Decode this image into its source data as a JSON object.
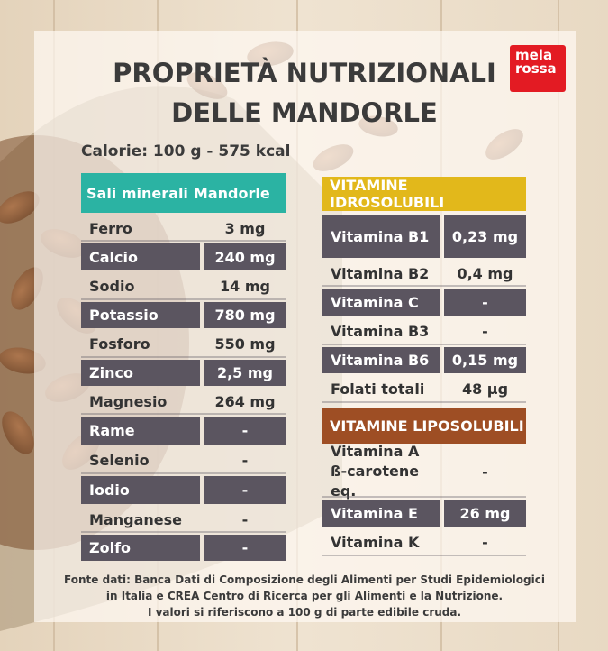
{
  "header": {
    "title_line1": "PROPRIETÀ NUTRIZIONALI",
    "title_line2": "DELLE MANDORLE",
    "calories": "Calorie: 100 g - 575 kcal",
    "logo_top": "mela",
    "logo_bottom": "rossa"
  },
  "colors": {
    "teal": "#2bb3a3",
    "yellow": "#e2b81b",
    "brown": "#9e4e24",
    "dark_row": "#5b5560"
  },
  "minerals": {
    "header_label": "Sali minerali",
    "header_value": "Mandorle",
    "rows": [
      {
        "name": "Ferro",
        "value": "3 mg"
      },
      {
        "name": "Calcio",
        "value": "240 mg"
      },
      {
        "name": "Sodio",
        "value": "14 mg"
      },
      {
        "name": "Potassio",
        "value": "780 mg"
      },
      {
        "name": "Fosforo",
        "value": "550 mg"
      },
      {
        "name": "Zinco",
        "value": "2,5 mg"
      },
      {
        "name": "Magnesio",
        "value": "264 mg"
      },
      {
        "name": "Rame",
        "value": "-"
      },
      {
        "name": "Selenio",
        "value": "-"
      },
      {
        "name": "Iodio",
        "value": "-"
      },
      {
        "name": "Manganese",
        "value": "-"
      },
      {
        "name": "Zolfo",
        "value": "-"
      }
    ]
  },
  "water_soluble": {
    "header": "VITAMINE IDROSOLUBILI",
    "rows": [
      {
        "name": "Vitamina B1",
        "value": "0,23 mg"
      },
      {
        "name": "Vitamina B2",
        "value": "0,4 mg"
      },
      {
        "name": "Vitamina C",
        "value": "-"
      },
      {
        "name": "Vitamina B3",
        "value": "-"
      },
      {
        "name": "Vitamina B6",
        "value": "0,15 mg"
      },
      {
        "name": "Folati totali",
        "value": "48 µg"
      }
    ]
  },
  "fat_soluble": {
    "header": "VITAMINE LIPOSOLUBILI",
    "rows": [
      {
        "name": "Vitamina A",
        "name2": "ß-carotene eq.",
        "value": "-"
      },
      {
        "name": "Vitamina E",
        "value": "26 mg"
      },
      {
        "name": "Vitamina K",
        "value": "-"
      }
    ]
  },
  "footer": {
    "line1": "Fonte dati: Banca Dati di Composizione degli Alimenti per Studi Epidemiologici",
    "line2": "in Italia e CREA Centro di Ricerca per gli Alimenti e la Nutrizione.",
    "line3": "I valori si riferiscono a 100 g di parte edibile cruda."
  }
}
